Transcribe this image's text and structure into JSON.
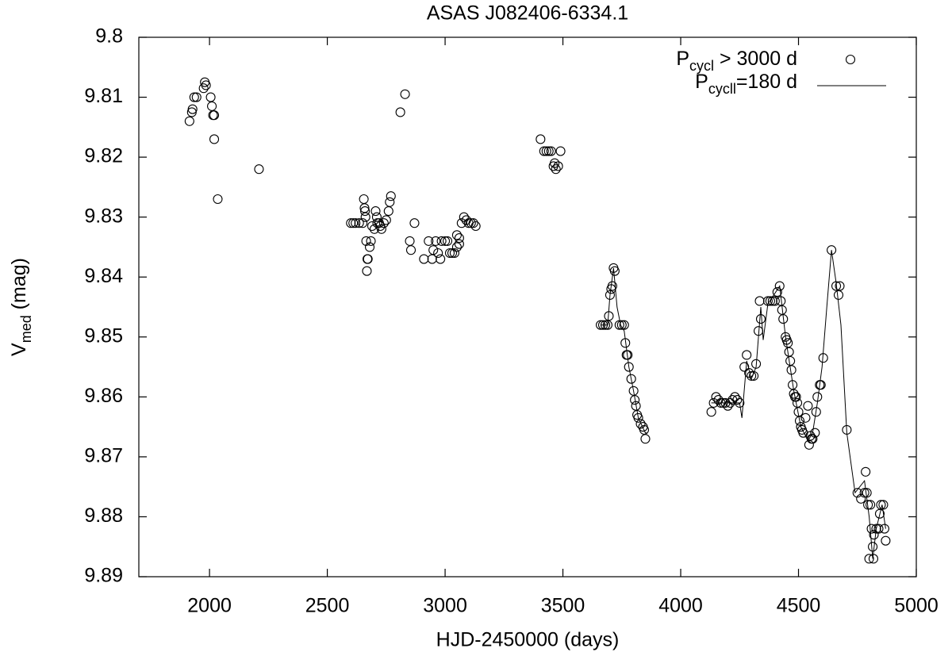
{
  "chart_data": {
    "type": "scatter",
    "title": "ASAS J082406-6334.1",
    "xlabel": "HJD-2450000 (days)",
    "ylabel": [
      "V",
      "med",
      " (mag)"
    ],
    "xlim": [
      1700,
      5000
    ],
    "ylim": [
      9.8,
      9.89
    ],
    "y_inverted": true,
    "xticks": [
      2000,
      2500,
      3000,
      3500,
      4000,
      4500,
      5000
    ],
    "yticks": [
      9.8,
      9.81,
      9.82,
      9.83,
      9.84,
      9.85,
      9.86,
      9.87,
      9.88,
      9.89
    ],
    "legend": "top-right",
    "series": [
      {
        "name": [
          "P",
          "cycl",
          " > 3000 d"
        ],
        "kind": "points",
        "color": "#000000",
        "x": [
          1915,
          1925,
          1928,
          1935,
          1945,
          1975,
          1980,
          1985,
          2005,
          2010,
          2015,
          2020,
          2020,
          2035,
          2210,
          2600,
          2610,
          2620,
          2635,
          2650,
          2655,
          2658,
          2660,
          2662,
          2665,
          2668,
          2670,
          2672,
          2680,
          2685,
          2690,
          2700,
          2705,
          2710,
          2712,
          2720,
          2725,
          2730,
          2740,
          2750,
          2760,
          2765,
          2770,
          2810,
          2830,
          2850,
          2855,
          2870,
          2910,
          2930,
          2945,
          2950,
          2960,
          2970,
          2980,
          2985,
          3000,
          3010,
          3020,
          3030,
          3040,
          3050,
          3060,
          3070,
          3080,
          3090,
          3100,
          3110,
          3120,
          3130,
          3060,
          3050,
          3405,
          3420,
          3430,
          3440,
          3450,
          3460,
          3465,
          3470,
          3480,
          3490,
          3660,
          3670,
          3680,
          3690,
          3695,
          3700,
          3705,
          3710,
          3715,
          3720,
          3740,
          3750,
          3760,
          3765,
          3770,
          3775,
          3780,
          3790,
          3800,
          3805,
          3810,
          3815,
          3820,
          3830,
          3840,
          3845,
          3850,
          4130,
          4140,
          4150,
          4160,
          4170,
          4180,
          4190,
          4200,
          4210,
          4220,
          4230,
          4240,
          4250,
          4270,
          4280,
          4290,
          4300,
          4310,
          4320,
          4330,
          4335,
          4340,
          4370,
          4380,
          4390,
          4400,
          4410,
          4420,
          4425,
          4430,
          4435,
          4445,
          4450,
          4455,
          4460,
          4465,
          4470,
          4475,
          4480,
          4485,
          4490,
          4495,
          4500,
          4505,
          4510,
          4515,
          4520,
          4530,
          4540,
          4545,
          4550,
          4555,
          4560,
          4570,
          4575,
          4580,
          4590,
          4595,
          4605,
          4640,
          4660,
          4670,
          4675,
          4705,
          4750,
          4765,
          4780,
          4785,
          4790,
          4795,
          4800,
          4805,
          4810,
          4815,
          4818,
          4820,
          4830,
          4840,
          4845,
          4850,
          4860,
          4865,
          4870
        ],
        "values": [
          9.814,
          9.8125,
          9.812,
          9.81,
          9.81,
          9.8085,
          9.8075,
          9.808,
          9.81,
          9.8115,
          9.813,
          9.813,
          9.817,
          9.827,
          9.822,
          9.831,
          9.831,
          9.831,
          9.831,
          9.831,
          9.827,
          9.8285,
          9.829,
          9.83,
          9.834,
          9.839,
          9.837,
          9.837,
          9.835,
          9.834,
          9.8315,
          9.832,
          9.829,
          9.83,
          9.831,
          9.831,
          9.8315,
          9.832,
          9.831,
          9.8305,
          9.829,
          9.8275,
          9.8265,
          9.8125,
          9.8095,
          9.834,
          9.8355,
          9.831,
          9.837,
          9.834,
          9.837,
          9.8355,
          9.834,
          9.836,
          9.837,
          9.834,
          9.834,
          9.834,
          9.836,
          9.836,
          9.836,
          9.835,
          9.8345,
          9.831,
          9.83,
          9.8305,
          9.831,
          9.831,
          9.831,
          9.8315,
          9.8335,
          9.833,
          9.817,
          9.819,
          9.819,
          9.819,
          9.819,
          9.8215,
          9.821,
          9.822,
          9.8215,
          9.819,
          9.848,
          9.848,
          9.848,
          9.848,
          9.8465,
          9.843,
          9.842,
          9.8415,
          9.8385,
          9.839,
          9.848,
          9.848,
          9.848,
          9.851,
          9.853,
          9.853,
          9.855,
          9.857,
          9.859,
          9.8605,
          9.8615,
          9.863,
          9.8635,
          9.8645,
          9.865,
          9.8655,
          9.867,
          9.8625,
          9.861,
          9.86,
          9.8605,
          9.861,
          9.861,
          9.861,
          9.8615,
          9.861,
          9.8605,
          9.86,
          9.8605,
          9.861,
          9.855,
          9.853,
          9.856,
          9.8565,
          9.8565,
          9.8545,
          9.849,
          9.844,
          9.847,
          9.844,
          9.844,
          9.844,
          9.844,
          9.8425,
          9.8415,
          9.844,
          9.8455,
          9.847,
          9.85,
          9.8505,
          9.851,
          9.8525,
          9.854,
          9.8555,
          9.858,
          9.8595,
          9.86,
          9.86,
          9.861,
          9.8625,
          9.864,
          9.865,
          9.8655,
          9.866,
          9.8635,
          9.8615,
          9.868,
          9.8665,
          9.867,
          9.867,
          9.866,
          9.8625,
          9.86,
          9.858,
          9.858,
          9.8535,
          9.8355,
          9.8415,
          9.843,
          9.8415,
          9.8655,
          9.876,
          9.877,
          9.876,
          9.8725,
          9.876,
          9.878,
          9.887,
          9.878,
          9.882,
          9.885,
          9.887,
          9.883,
          9.882,
          9.882,
          9.8795,
          9.878,
          9.878,
          9.882,
          9.884
        ]
      },
      {
        "name": [
          "P",
          "cycll",
          "=180 d"
        ],
        "kind": "line",
        "color": "#000000",
        "x": [
          3660,
          3690,
          3700,
          3715,
          3730,
          3745,
          3760,
          3780,
          3800,
          3820,
          3850,
          3860,
          null,
          4130,
          4200,
          4250,
          4260,
          4280,
          4300,
          4320,
          4340,
          4350,
          4370,
          4420,
          4445,
          4480,
          4510,
          4530,
          4545,
          4560,
          4580,
          4600,
          4620,
          4640,
          4660,
          4680,
          4705,
          4740,
          4780,
          4800,
          4815,
          4830,
          4855,
          4870
        ],
        "values": [
          9.848,
          9.848,
          9.843,
          9.8385,
          9.845,
          9.848,
          9.849,
          9.855,
          9.859,
          9.8635,
          9.866,
          9.866,
          null,
          9.861,
          9.861,
          9.861,
          9.8635,
          9.854,
          9.857,
          9.855,
          9.845,
          9.8505,
          9.8445,
          9.8415,
          9.85,
          9.859,
          9.865,
          9.8665,
          9.867,
          9.866,
          9.861,
          9.855,
          9.845,
          9.8355,
          9.841,
          9.848,
          9.866,
          9.876,
          9.874,
          9.88,
          9.887,
          9.882,
          9.878,
          9.882
        ]
      }
    ]
  }
}
